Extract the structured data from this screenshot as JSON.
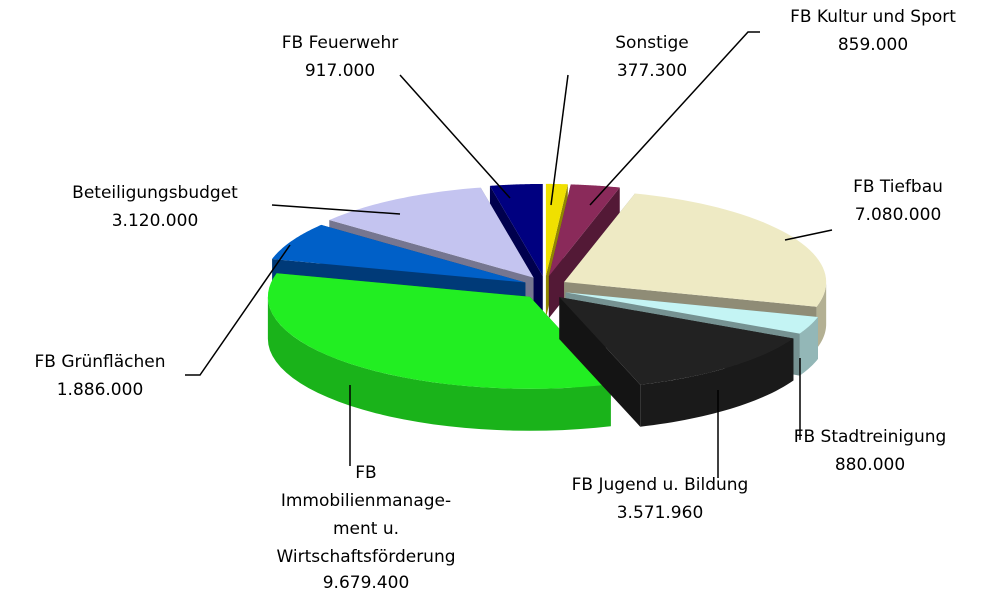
{
  "chart_data": {
    "type": "pie3d",
    "categories": [
      "Sonstige",
      "FB Kultur und Sport",
      "FB Tiefbau",
      "FB Stadtreinigung",
      "FB Jugend u. Bildung",
      "FB\nImmobilienmanage-\nment u.\nWirtschaftsförderung",
      "FB Grünflächen",
      "Beteiligungsbudget",
      "FB Feuerwehr"
    ],
    "values": [
      377300,
      859000,
      7080000,
      880000,
      3571960,
      9679400,
      1886000,
      3120000,
      917000
    ],
    "value_labels": [
      "377.300",
      "859.000",
      "7.080.000",
      "880.000",
      "3.571.960",
      "9.679.400",
      "1.886.000",
      "3.120.000",
      "917.000"
    ],
    "colors": [
      "#f0e000",
      "#8a2a5a",
      "#eeeac4",
      "#c4f4f4",
      "#222222",
      "#22ee22",
      "#0060c8",
      "#c4c4f0",
      "#000080"
    ]
  }
}
